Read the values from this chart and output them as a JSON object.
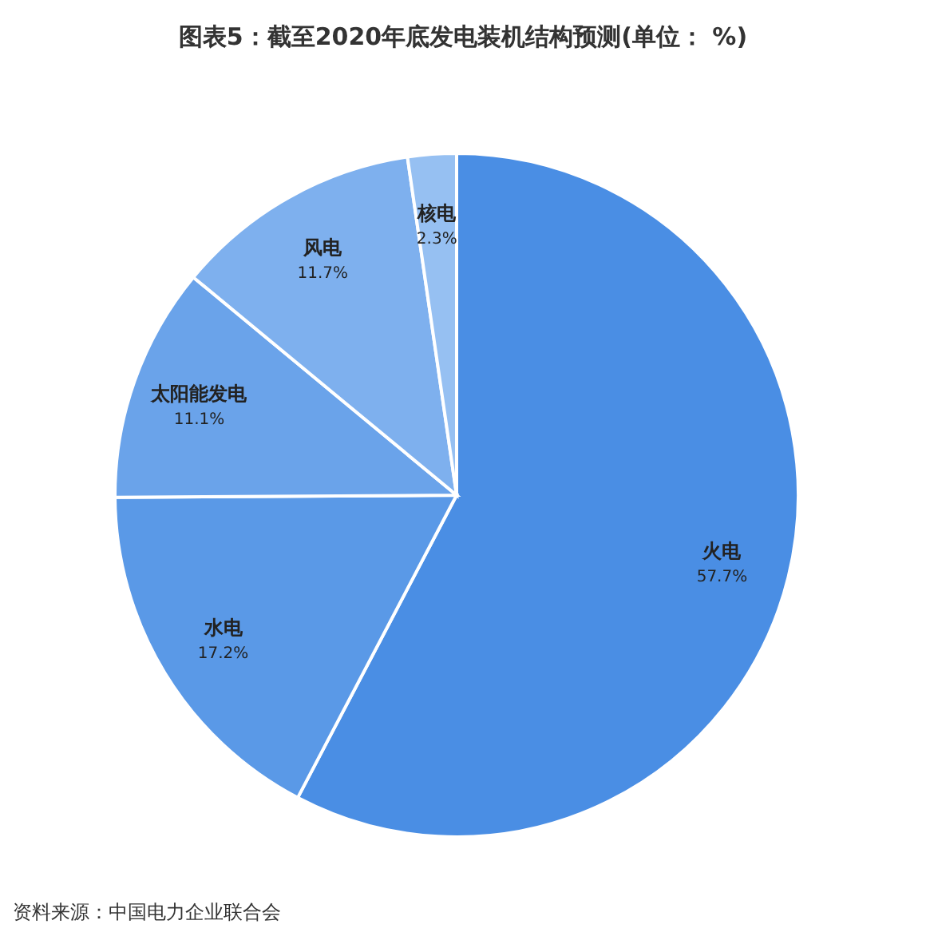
{
  "chart_data": {
    "type": "pie",
    "title": "图表5：截至2020年底发电装机结构预测(单位： %)",
    "categories": [
      "火电",
      "水电",
      "太阳能发电",
      "风电",
      "核电"
    ],
    "values": [
      57.7,
      17.2,
      11.1,
      11.7,
      2.3
    ],
    "colors": [
      "#4a8ee4",
      "#5a99e7",
      "#6aa3ea",
      "#7eb0ee",
      "#96c0f2"
    ],
    "value_labels": [
      "57.7%",
      "17.2%",
      "11.1%",
      "11.7%",
      "2.3%"
    ],
    "annotations": [
      "资料来源：中国电力企业联合会"
    ]
  }
}
